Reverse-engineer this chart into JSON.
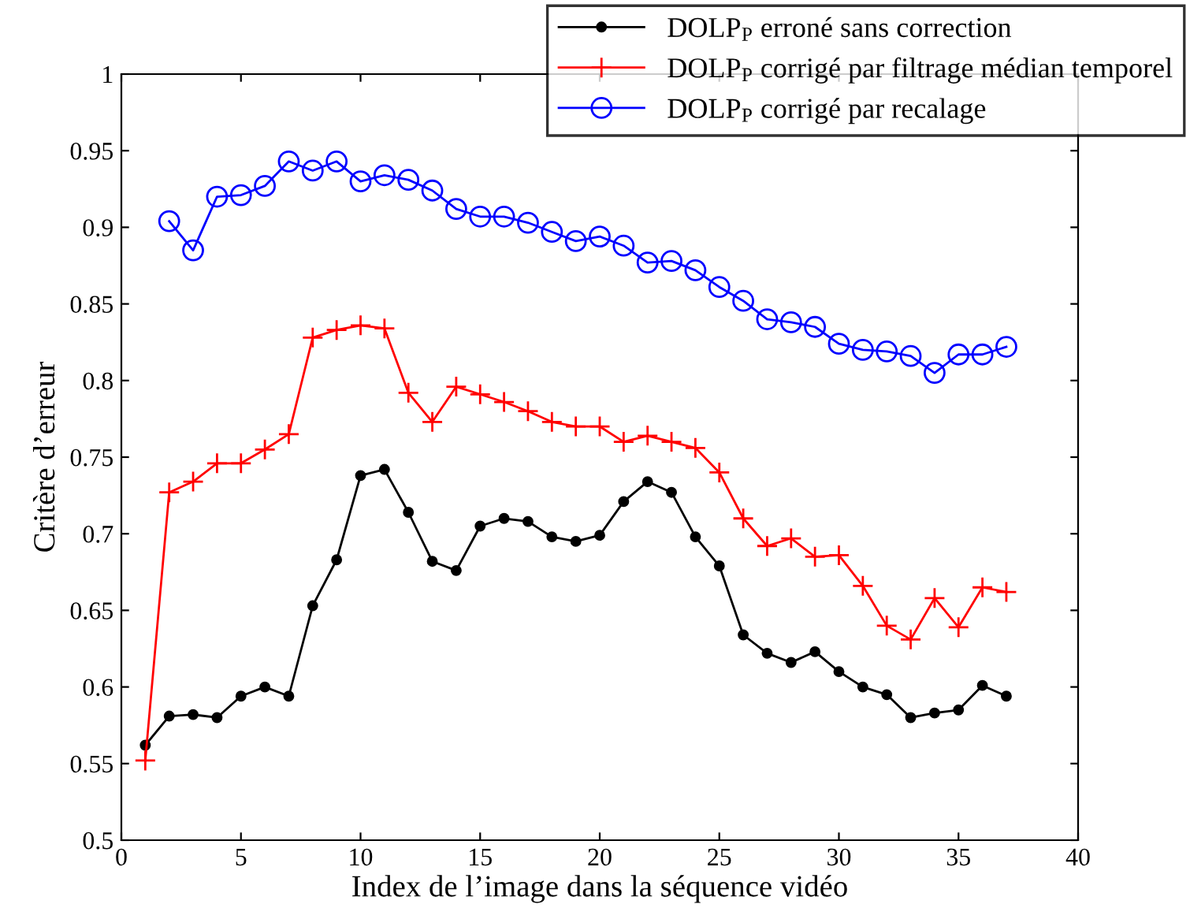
{
  "chart_data": {
    "type": "line",
    "xlabel": "Index de l’image dans la séquence vidéo",
    "ylabel": "Critère d’erreur",
    "xlim": [
      0,
      40
    ],
    "xticks": [
      0,
      5,
      10,
      15,
      20,
      25,
      30,
      35,
      40
    ],
    "ylim": [
      0.5,
      1
    ],
    "yticks": [
      0.5,
      0.55,
      0.6,
      0.65,
      0.7,
      0.75,
      0.8,
      0.85,
      0.9,
      0.95,
      1
    ],
    "grid": false,
    "legend": "top right",
    "line_style": "solid",
    "series": [
      {
        "name": "DOLP$_{P}$ erroné sans correction",
        "color": "#000000",
        "marker": "circle",
        "x": [
          1,
          2,
          3,
          4,
          5,
          6,
          7,
          8,
          9,
          10,
          11,
          12,
          13,
          14,
          15,
          16,
          17,
          18,
          19,
          20,
          21,
          22,
          23,
          24,
          25,
          26,
          27,
          28,
          29,
          30,
          31,
          32,
          33,
          34,
          35,
          36,
          37
        ],
        "values": [
          0.562,
          0.581,
          0.582,
          0.58,
          0.594,
          0.6,
          0.594,
          0.653,
          0.683,
          0.738,
          0.742,
          0.714,
          0.682,
          0.676,
          0.705,
          0.71,
          0.708,
          0.698,
          0.695,
          0.699,
          0.721,
          0.734,
          0.727,
          0.698,
          0.679,
          0.634,
          0.622,
          0.616,
          0.623,
          0.61,
          0.6,
          0.595,
          0.58,
          0.583,
          0.585,
          0.601,
          0.594
        ]
      },
      {
        "name": "DOLP$_{P}$ corrigé par filtrage médian temporel",
        "color": "#ff0000",
        "marker": "cross",
        "x": [
          1,
          2,
          3,
          4,
          5,
          6,
          7,
          8,
          9,
          10,
          11,
          12,
          13,
          14,
          15,
          16,
          17,
          18,
          19,
          20,
          21,
          22,
          23,
          24,
          25,
          26,
          27,
          28,
          29,
          30,
          31,
          32,
          33,
          34,
          35,
          36,
          37
        ],
        "values": [
          0.552,
          0.727,
          0.734,
          0.746,
          0.746,
          0.755,
          0.765,
          0.828,
          0.833,
          0.836,
          0.834,
          0.792,
          0.773,
          0.796,
          0.791,
          0.786,
          0.78,
          0.773,
          0.77,
          0.77,
          0.76,
          0.764,
          0.76,
          0.756,
          0.74,
          0.71,
          0.692,
          0.697,
          0.685,
          0.686,
          0.666,
          0.64,
          0.631,
          0.658,
          0.639,
          0.665,
          0.662
        ]
      },
      {
        "name": "DOLP$_{P}$ corrigé par recalage",
        "color": "#0000ff",
        "marker": "circle_open",
        "x": [
          2,
          3,
          4,
          5,
          6,
          7,
          8,
          9,
          10,
          11,
          12,
          13,
          14,
          15,
          16,
          17,
          18,
          19,
          20,
          21,
          22,
          23,
          24,
          25,
          26,
          27,
          28,
          29,
          30,
          31,
          32,
          33,
          34,
          35,
          36,
          37
        ],
        "values": [
          0.904,
          0.885,
          0.92,
          0.921,
          0.927,
          0.943,
          0.937,
          0.943,
          0.93,
          0.934,
          0.931,
          0.924,
          0.912,
          0.907,
          0.907,
          0.903,
          0.897,
          0.891,
          0.894,
          0.888,
          0.877,
          0.878,
          0.872,
          0.861,
          0.852,
          0.84,
          0.838,
          0.835,
          0.824,
          0.82,
          0.819,
          0.816,
          0.805,
          0.817,
          0.817,
          0.822
        ]
      }
    ]
  }
}
